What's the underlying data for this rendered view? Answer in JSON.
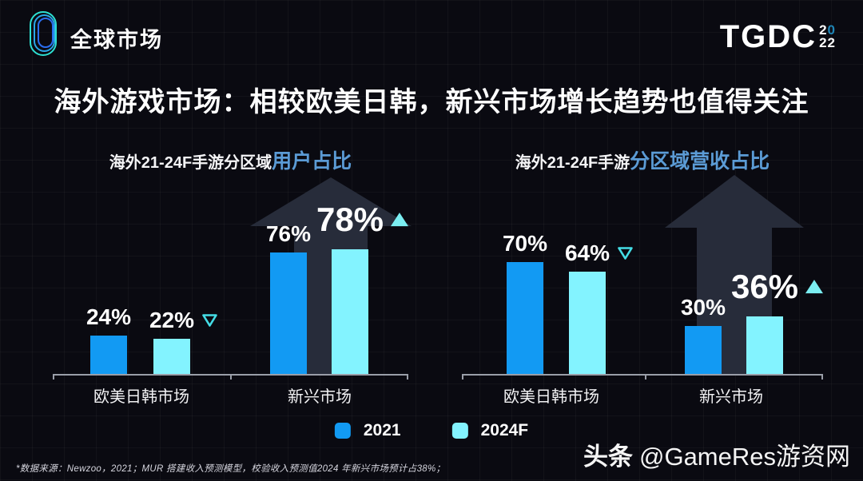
{
  "header": {
    "brand": "全球市场",
    "tgdc_main": "TGDC",
    "tgdc_year_top_a": "2",
    "tgdc_year_top_b": "0",
    "tgdc_year_bottom": "22"
  },
  "title": "海外游戏市场：相较欧美日韩，新兴市场增长趋势也值得关注",
  "charts": [
    {
      "subtitle_plain": "海外21-24F手游分区域",
      "subtitle_accent": "用户占比"
    },
    {
      "subtitle_plain": "海外21-24F手游",
      "subtitle_accent": "分区域营收占比"
    }
  ],
  "chart_data": [
    {
      "type": "bar",
      "title": "海外21-24F手游分区域用户占比",
      "categories": [
        "欧美日韩市场",
        "新兴市场"
      ],
      "series": [
        {
          "name": "2021",
          "color": "#129af3",
          "values": [
            24,
            76
          ]
        },
        {
          "name": "2024F",
          "color": "#83f3ff",
          "values": [
            22,
            78
          ]
        }
      ],
      "labels": [
        [
          "24%",
          "76%"
        ],
        [
          "22%",
          "78%"
        ]
      ],
      "indicators": [
        [
          null,
          null
        ],
        [
          "down",
          "up"
        ]
      ],
      "emphasis": [
        [
          false,
          false
        ],
        [
          false,
          true
        ]
      ],
      "ylim": [
        0,
        100
      ],
      "unit": "%",
      "grid": false,
      "legend_position": "bottom"
    },
    {
      "type": "bar",
      "title": "海外21-24F手游分区域营收占比",
      "categories": [
        "欧美日韩市场",
        "新兴市场"
      ],
      "series": [
        {
          "name": "2021",
          "color": "#129af3",
          "values": [
            70,
            30
          ]
        },
        {
          "name": "2024F",
          "color": "#83f3ff",
          "values": [
            64,
            36
          ]
        }
      ],
      "labels": [
        [
          "70%",
          "30%"
        ],
        [
          "64%",
          "36%"
        ]
      ],
      "indicators": [
        [
          null,
          null
        ],
        [
          "down",
          "up"
        ]
      ],
      "emphasis": [
        [
          false,
          false
        ],
        [
          false,
          true
        ]
      ],
      "ylim": [
        0,
        100
      ],
      "unit": "%",
      "grid": false,
      "legend_position": "bottom"
    }
  ],
  "legend": [
    {
      "label": "2021",
      "color": "#129af3"
    },
    {
      "label": "2024F",
      "color": "#83f3ff"
    }
  ],
  "footnote": "*数据来源：Newzoo，2021；MUR 搭建收入预测模型，校验收入预测值2024 年新兴市场预计占38%；",
  "watermark": {
    "bold": "头条",
    "rest": "@GameRes游资网"
  },
  "colors": {
    "background": "#0a0a11",
    "bar_2021": "#129af3",
    "bar_2024f": "#83f3ff",
    "indicator_cyan": "#44dde6",
    "subtitle_accent": "#5b9bd5",
    "big_arrow": "#272c3a",
    "axis": "#9a9ea8"
  }
}
